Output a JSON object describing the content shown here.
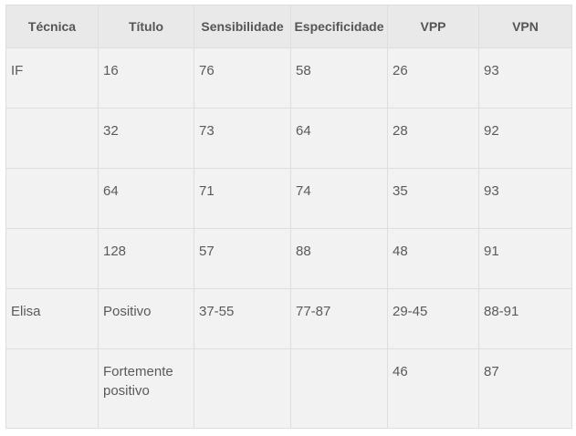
{
  "headers": [
    "Técnica",
    "Título",
    "Sensibilidade",
    "Especificidade",
    "VPP",
    "VPN"
  ],
  "rows": [
    [
      "IF",
      "16",
      "76",
      "58",
      "26",
      "93"
    ],
    [
      "",
      "32",
      "73",
      "64",
      "28",
      "92"
    ],
    [
      "",
      "64",
      "71",
      "74",
      "35",
      "93"
    ],
    [
      "",
      "128",
      "57",
      "88",
      "48",
      "91"
    ],
    [
      "Elisa",
      "Positivo",
      "37-55",
      "77-87",
      "29-45",
      "88-91"
    ],
    [
      "",
      "Fortemente positivo",
      "",
      "",
      "46",
      "87"
    ]
  ]
}
